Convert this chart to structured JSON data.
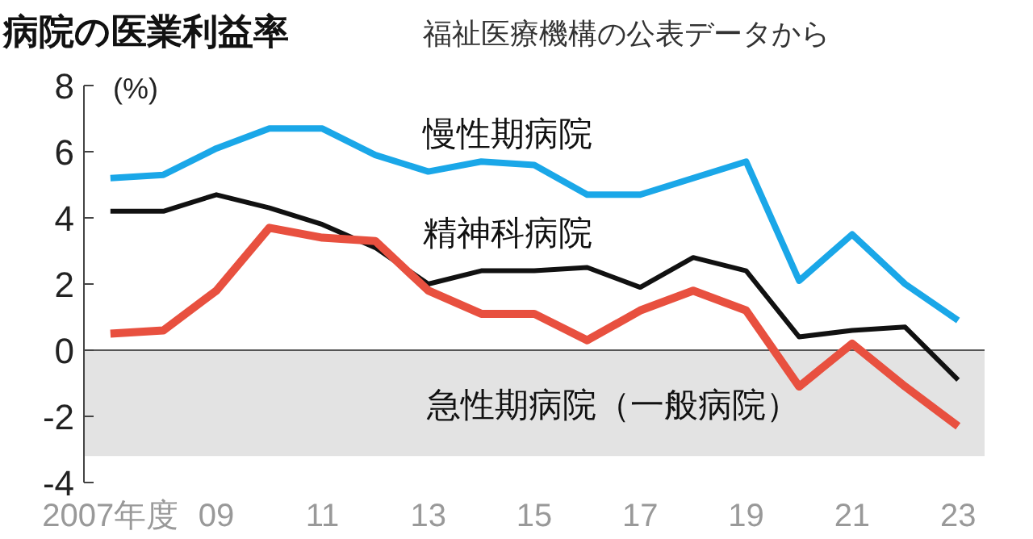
{
  "chart_data": {
    "type": "line",
    "title": "病院の医業利益率",
    "subtitle": "福祉医療機構の公表データから",
    "ylabel": "(%)",
    "x": [
      2007,
      2008,
      2009,
      2010,
      2011,
      2012,
      2013,
      2014,
      2015,
      2016,
      2017,
      2018,
      2019,
      2020,
      2021,
      2022,
      2023
    ],
    "series": [
      {
        "name": "慢性期病院",
        "color": "#1aa7e8",
        "values": [
          5.2,
          5.3,
          6.1,
          6.7,
          6.7,
          5.9,
          5.4,
          5.7,
          5.6,
          4.7,
          4.7,
          5.2,
          5.7,
          2.1,
          3.5,
          2.0,
          0.9
        ]
      },
      {
        "name": "精神科病院",
        "color": "#111111",
        "values": [
          4.2,
          4.2,
          4.7,
          4.3,
          3.8,
          3.1,
          2.0,
          2.4,
          2.4,
          2.5,
          1.9,
          2.8,
          2.4,
          0.4,
          0.6,
          0.7,
          -0.9
        ]
      },
      {
        "name": "急性期病院（一般病院）",
        "color": "#e8503f",
        "values": [
          0.5,
          0.6,
          1.8,
          3.7,
          3.4,
          3.3,
          1.8,
          1.1,
          1.1,
          0.3,
          1.2,
          1.8,
          1.2,
          -1.1,
          0.2,
          -1.1,
          -2.3
        ]
      }
    ],
    "xlim": [
      2006.5,
      2023.5
    ],
    "ylim": [
      -4,
      8
    ],
    "xticks": [
      {
        "value": 2007,
        "label": "2007年度"
      },
      {
        "value": 2009,
        "label": "09"
      },
      {
        "value": 2011,
        "label": "11"
      },
      {
        "value": 2013,
        "label": "13"
      },
      {
        "value": 2015,
        "label": "15"
      },
      {
        "value": 2017,
        "label": "17"
      },
      {
        "value": 2019,
        "label": "19"
      },
      {
        "value": 2021,
        "label": "21"
      },
      {
        "value": 2023,
        "label": "23"
      }
    ],
    "yticks": [
      -4,
      -2,
      0,
      2,
      4,
      6,
      8
    ],
    "bands": [
      {
        "axis": "y",
        "from": -3.2,
        "to": 0,
        "color": "#e3e3e3"
      }
    ],
    "ref_lines": [
      {
        "axis": "y",
        "value": 0,
        "color": "#555555"
      }
    ],
    "grid": false,
    "legend": false,
    "marker": "none",
    "line_style": "solid"
  }
}
